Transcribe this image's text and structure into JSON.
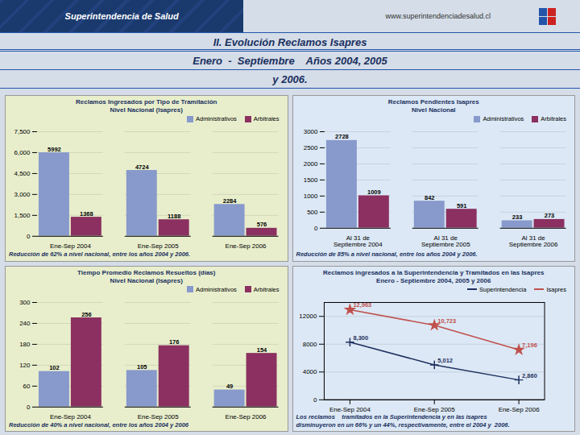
{
  "title": "II. Evolución Reclamos Isapres",
  "subtitle": [
    "Enero  -  Septiembre    Años 2004, 2005",
    "y 2006."
  ],
  "annotations": [
    "Superintendencia de Salud",
    "www.superintendenciadesalud.cl"
  ],
  "chart_data": [
    {
      "type": "bar",
      "title": "Reclamos Ingresados por Tipo de Tramitación\nNivel Nacional (Isapres)",
      "categories": [
        "Ene-Sep 2004",
        "Ene-Sep 2005",
        "Ene-Sep 2006"
      ],
      "series": [
        {
          "name": "Administrativos",
          "color": "#8899cc",
          "values": [
            5992,
            4724,
            2284
          ]
        },
        {
          "name": "Arbitrales",
          "color": "#8b3060",
          "values": [
            1368,
            1188,
            576
          ]
        }
      ],
      "ylim": [
        0,
        7500
      ],
      "yticks": [
        0,
        {
          "value": 1500,
          "label": "1,500"
        },
        {
          "value": 3000,
          "label": "3,000"
        },
        {
          "value": 4500,
          "label": "4,500"
        },
        {
          "value": 6000,
          "label": "6,000"
        },
        {
          "value": 7500,
          "label": "7,500"
        }
      ],
      "grid": true,
      "legend": "upper right",
      "data_labels": true,
      "annotations": [
        "Reducción de 62% a nivel nacional, entre los años 2004 y 2006."
      ]
    },
    {
      "type": "bar",
      "title": "Reclamos Pendientes Isapres\nNivel Nacional",
      "categories": [
        "Al 31 de\nSeptiembre 2004",
        "Al 31 de\nSeptiembre 2005",
        "Al 31 de\nSeptiembre 2006"
      ],
      "series": [
        {
          "name": "Administrativos",
          "color": "#8899cc",
          "values": [
            2728,
            842,
            233
          ]
        },
        {
          "name": "Arbitrales",
          "color": "#8b3060",
          "values": [
            1009,
            591,
            273
          ]
        }
      ],
      "ylim": [
        0,
        3000
      ],
      "yticks": [
        0,
        500,
        1000,
        1500,
        2000,
        2500,
        3000
      ],
      "grid": true,
      "legend": "upper right",
      "data_labels": true,
      "annotations": [
        "Reducción de 85% a nivel nacional, entre los años 2004 y 2006."
      ]
    },
    {
      "type": "bar",
      "title": "Tiempo Promedio Reclamos Resueltos (días)\nNivel Nacional (Isapres)",
      "categories": [
        "Ene-Sep 2004",
        "Ene-Sep 2005",
        "Ene-Sep 2006"
      ],
      "series": [
        {
          "name": "Administrativos",
          "color": "#8899cc",
          "values": [
            102,
            105,
            49
          ]
        },
        {
          "name": "Arbitrales",
          "color": "#8b3060",
          "values": [
            256,
            176,
            154
          ]
        }
      ],
      "ylim": [
        0,
        300
      ],
      "yticks": [
        0,
        60,
        120,
        180,
        240,
        300
      ],
      "grid": true,
      "legend": "upper right",
      "data_labels": true,
      "annotations": [
        "Reducción de 40% a nivel nacional, entre los años 2004 y 2006"
      ]
    },
    {
      "type": "line",
      "title": "Reclamos ingresados a la Superintendencia y Tramitados en las Isapres\nEnero - Septiembre 2004, 2005 y 2006",
      "categories": [
        "Ene-Sep 2004",
        "Ene-Sep 2005",
        "Ene-Sep 2006"
      ],
      "series": [
        {
          "name": "Superintendencia",
          "color": "#1f3060",
          "marker": "plus",
          "values": [
            8300,
            5012,
            2860
          ],
          "value_labels": [
            "8,300",
            "5,012",
            "2,860"
          ]
        },
        {
          "name": "Isapres",
          "color": "#c0504d",
          "marker": "star",
          "values": [
            12963,
            10723,
            7196
          ],
          "value_labels": [
            "12,963",
            "10,723",
            "7,196"
          ]
        }
      ],
      "ylim": [
        0,
        14000
      ],
      "yticks": [
        0,
        4000,
        8000,
        12000
      ],
      "grid": true,
      "legend": "upper right",
      "data_labels": true,
      "annotations": [
        "Los reclamos    tramitados en la Superintendencia y en las isapres",
        "disminuyeron en un 66% y un 44%, respectivamente, entre el 2004 y  2006."
      ]
    }
  ]
}
